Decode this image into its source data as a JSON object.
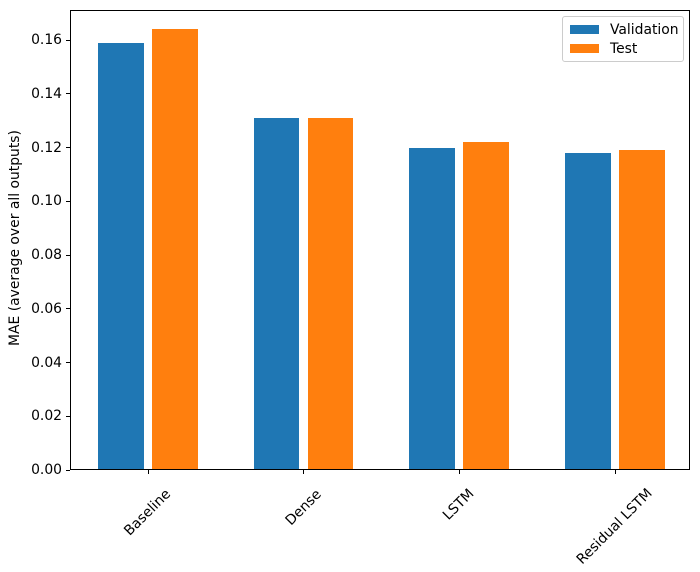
{
  "chart_data": {
    "type": "bar",
    "categories": [
      "Baseline",
      "Dense",
      "LSTM",
      "Residual LSTM"
    ],
    "series": [
      {
        "name": "Validation",
        "color": "#1f77b4",
        "values": [
          0.159,
          0.131,
          0.12,
          0.118
        ]
      },
      {
        "name": "Test",
        "color": "#ff7f0e",
        "values": [
          0.164,
          0.131,
          0.122,
          0.119
        ]
      }
    ],
    "xlabel": "",
    "ylabel": "MAE (average over all outputs)",
    "ylim": [
      0,
      0.1712
    ],
    "yticks": [
      0.0,
      0.02,
      0.04,
      0.06,
      0.08,
      0.1,
      0.12,
      0.14,
      0.16
    ],
    "ytick_labels": [
      "0.00",
      "0.02",
      "0.04",
      "0.06",
      "0.08",
      "0.10",
      "0.12",
      "0.14",
      "0.16"
    ],
    "x_tick_rotation": 45,
    "grid": false,
    "legend_position": "upper right"
  }
}
